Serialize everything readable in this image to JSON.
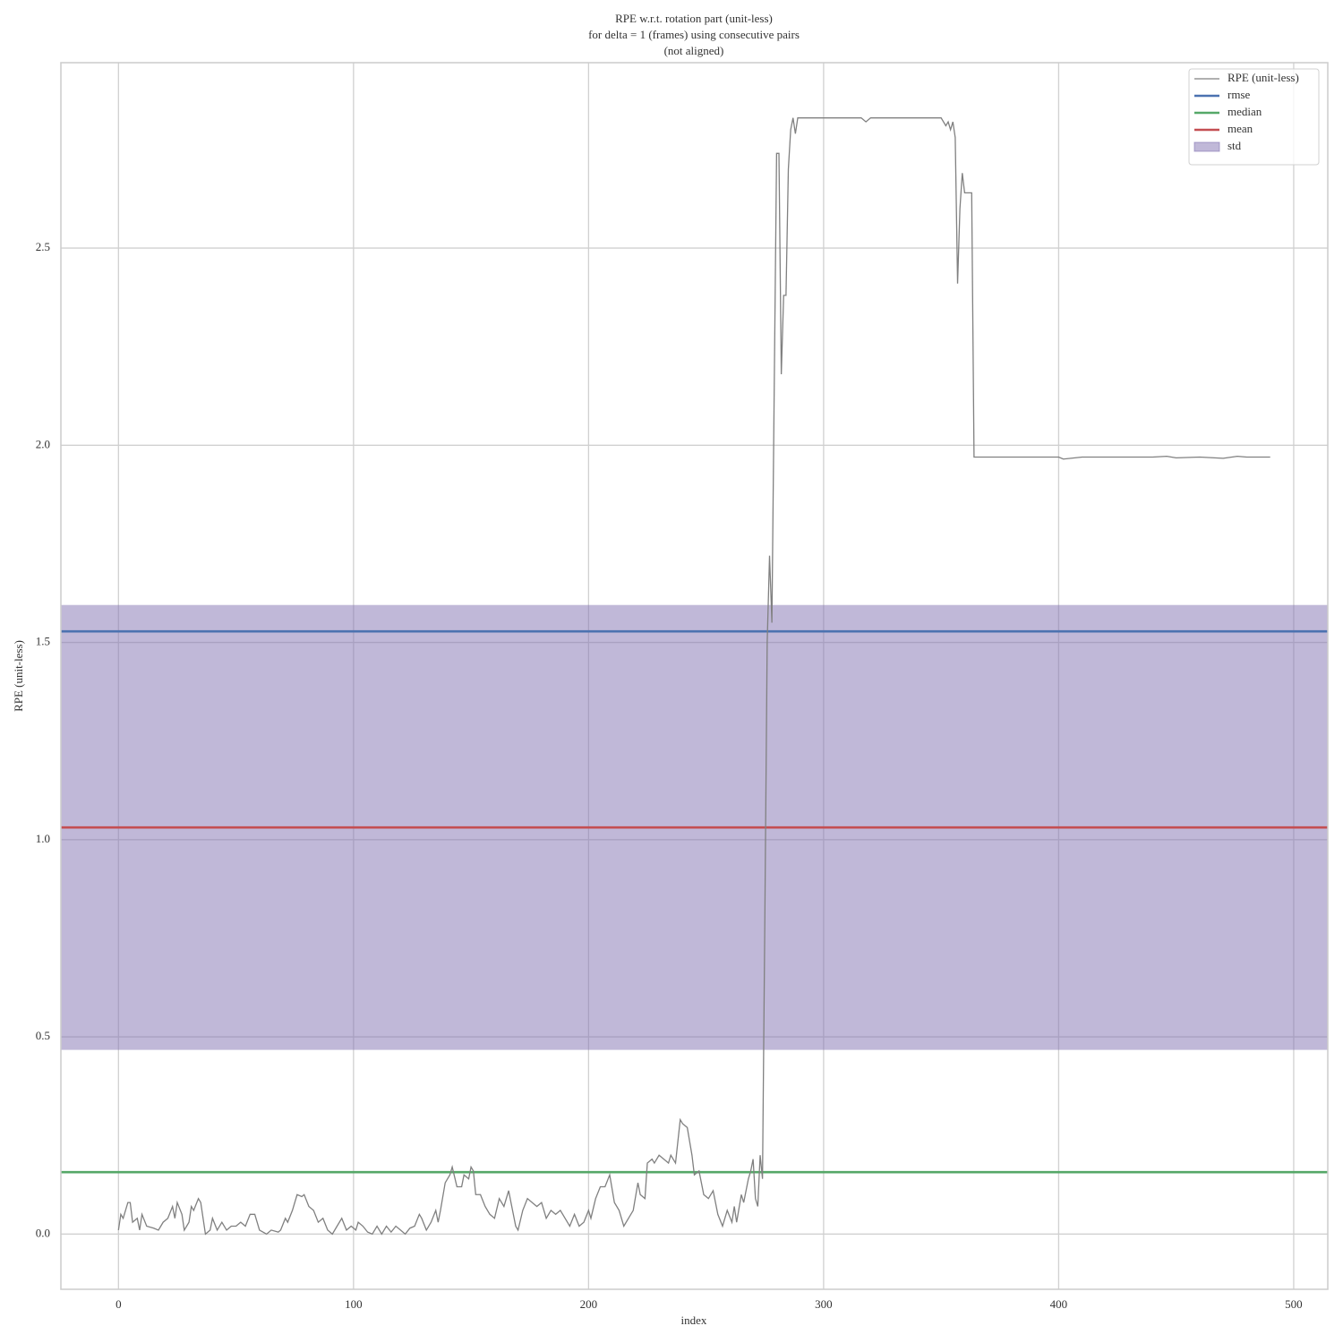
{
  "chart_data": {
    "type": "line",
    "title": [
      "RPE w.r.t. rotation part (unit-less)",
      "for delta = 1 (frames) using consecutive pairs",
      "(not aligned)"
    ],
    "x_label": "index",
    "y_label": "RPE (unit-less)",
    "xlim": [
      -24.5,
      514.5
    ],
    "ylim": [
      -0.14,
      2.97
    ],
    "xticks": [
      0,
      100,
      200,
      300,
      400,
      500
    ],
    "yticks": [
      {
        "value": 0,
        "label": "0.0"
      },
      0.5,
      {
        "value": 1,
        "label": "1.0"
      },
      1.5,
      {
        "value": 2,
        "label": "2.0"
      },
      2.5
    ],
    "grid": true,
    "legend": "upper right",
    "series": [
      {
        "name": "RPE (unit-less)",
        "color": "#808080",
        "x": [
          0,
          1,
          2,
          4,
          5,
          6,
          8,
          9,
          10,
          12,
          15,
          17,
          19,
          21,
          23,
          24,
          25,
          27,
          28,
          30,
          31,
          32,
          34,
          35,
          37,
          39,
          40,
          42,
          44,
          46,
          48,
          50,
          52,
          54,
          56,
          58,
          60,
          63,
          65,
          68,
          69,
          71,
          72,
          74,
          76,
          78,
          79,
          81,
          83,
          85,
          87,
          89,
          91,
          93,
          95,
          97,
          99,
          101,
          102,
          104,
          106,
          108,
          110,
          112,
          114,
          116,
          118,
          120,
          122,
          124,
          126,
          128,
          129,
          131,
          133,
          135,
          136,
          137,
          139,
          141,
          142,
          144,
          146,
          147,
          149,
          150,
          151,
          152,
          154,
          156,
          158,
          160,
          162,
          164,
          166,
          167,
          169,
          170,
          172,
          174,
          176,
          178,
          180,
          182,
          184,
          186,
          188,
          190,
          192,
          194,
          196,
          198,
          200,
          201,
          203,
          205,
          207,
          209,
          211,
          213,
          215,
          217,
          219,
          221,
          222,
          224,
          225,
          227,
          228,
          230,
          232,
          234,
          235,
          237,
          239,
          240,
          242,
          244,
          245,
          247,
          249,
          251,
          253,
          255,
          257,
          259,
          261,
          262,
          263,
          265,
          266,
          268,
          269,
          270,
          271,
          272,
          273,
          274,
          275,
          276,
          277,
          278,
          279,
          280,
          281,
          282,
          283,
          284,
          285,
          286,
          287,
          288,
          289,
          292,
          300,
          310,
          316,
          318,
          320,
          330,
          340,
          350,
          352,
          353,
          354,
          355,
          356,
          357,
          358,
          359,
          360,
          363,
          364,
          380,
          400,
          402,
          410,
          420,
          440,
          446,
          450,
          460,
          470,
          476,
          480,
          490
        ],
        "values": [
          0.01,
          0.05,
          0.04,
          0.08,
          0.08,
          0.03,
          0.04,
          0.01,
          0.05,
          0.02,
          0.015,
          0.01,
          0.03,
          0.04,
          0.07,
          0.04,
          0.08,
          0.05,
          0.01,
          0.03,
          0.07,
          0.06,
          0.09,
          0.08,
          0.0,
          0.01,
          0.04,
          0.01,
          0.03,
          0.01,
          0.02,
          0.02,
          0.03,
          0.02,
          0.05,
          0.05,
          0.01,
          0.0,
          0.01,
          0.005,
          0.01,
          0.04,
          0.03,
          0.06,
          0.1,
          0.095,
          0.1,
          0.07,
          0.06,
          0.03,
          0.04,
          0.01,
          0.0,
          0.02,
          0.04,
          0.01,
          0.02,
          0.01,
          0.03,
          0.02,
          0.005,
          0.0,
          0.02,
          0.0,
          0.02,
          0.005,
          0.02,
          0.01,
          0.0,
          0.015,
          0.02,
          0.05,
          0.04,
          0.01,
          0.03,
          0.06,
          0.03,
          0.06,
          0.13,
          0.15,
          0.17,
          0.12,
          0.12,
          0.15,
          0.14,
          0.17,
          0.16,
          0.1,
          0.1,
          0.07,
          0.05,
          0.04,
          0.09,
          0.07,
          0.11,
          0.08,
          0.02,
          0.01,
          0.06,
          0.09,
          0.08,
          0.07,
          0.08,
          0.04,
          0.06,
          0.05,
          0.06,
          0.04,
          0.02,
          0.05,
          0.02,
          0.03,
          0.06,
          0.04,
          0.09,
          0.12,
          0.12,
          0.15,
          0.08,
          0.06,
          0.02,
          0.04,
          0.06,
          0.13,
          0.1,
          0.09,
          0.18,
          0.19,
          0.18,
          0.2,
          0.19,
          0.18,
          0.2,
          0.18,
          0.29,
          0.28,
          0.27,
          0.2,
          0.15,
          0.16,
          0.1,
          0.09,
          0.11,
          0.05,
          0.02,
          0.06,
          0.03,
          0.07,
          0.03,
          0.1,
          0.08,
          0.14,
          0.16,
          0.19,
          0.09,
          0.07,
          0.2,
          0.14,
          0.8,
          1.5,
          1.72,
          1.55,
          2.15,
          2.74,
          2.74,
          2.18,
          2.38,
          2.38,
          2.7,
          2.8,
          2.83,
          2.79,
          2.83,
          2.83,
          2.83,
          2.83,
          2.83,
          2.82,
          2.83,
          2.83,
          2.83,
          2.83,
          2.81,
          2.82,
          2.8,
          2.82,
          2.78,
          2.41,
          2.6,
          2.69,
          2.64,
          2.64,
          1.97,
          1.97,
          1.97,
          1.965,
          1.97,
          1.97,
          1.97,
          1.972,
          1.968,
          1.97,
          1.967,
          1.972,
          1.97,
          1.97
        ]
      },
      {
        "name": "rmse",
        "color": "#4c72b0",
        "value": 1.528
      },
      {
        "name": "median",
        "color": "#55a868",
        "value": 0.157
      },
      {
        "name": "mean",
        "color": "#c44e52",
        "value": 1.031
      },
      {
        "name": "std",
        "color": "#8172b2",
        "value": 0.564
      }
    ]
  }
}
